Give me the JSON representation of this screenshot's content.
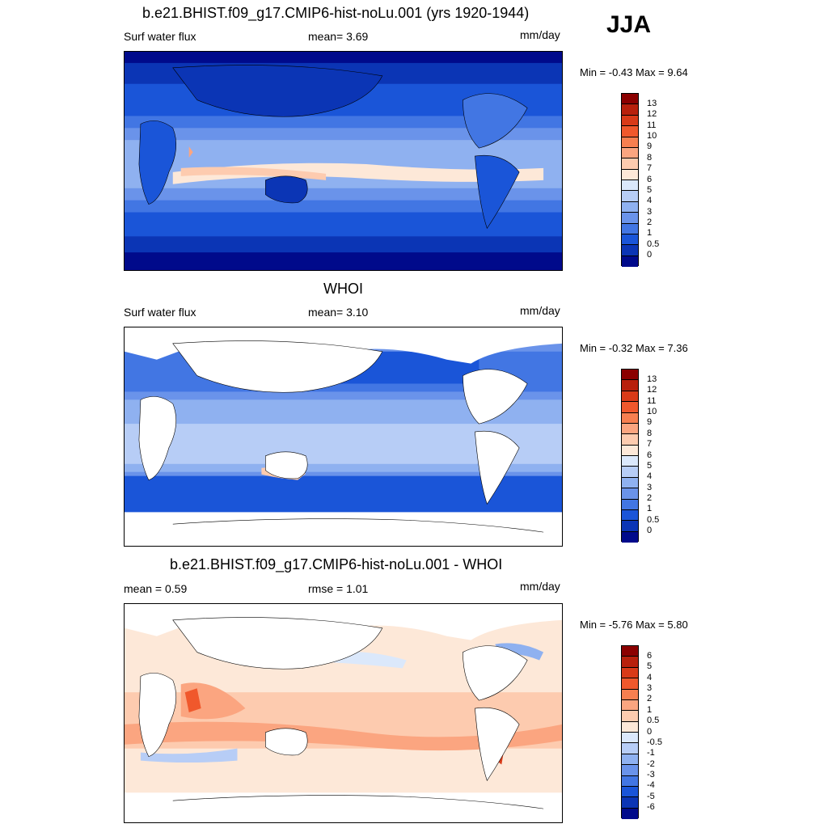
{
  "season": "JJA",
  "panels": [
    {
      "title": "b.e21.BHIST.f09_g17.CMIP6-hist-noLu.001 (yrs 1920-1944)",
      "left_label": "Surf water flux",
      "center_label": "mean=   3.69",
      "units": "mm/day",
      "minmax": "Min =  -0.43 Max =    9.64",
      "colorbar_labels": [
        "13",
        "12",
        "11",
        "10",
        "9",
        "8",
        "7",
        "6",
        "5",
        "4",
        "3",
        "2",
        "1",
        "0.5",
        "0"
      ],
      "colorbar_colors": [
        "#8b0000",
        "#b8200c",
        "#d93a18",
        "#f0582c",
        "#f77f50",
        "#fba580",
        "#fdcbaf",
        "#fde8d8",
        "#dbe8fb",
        "#b7cdf6",
        "#8fb1f0",
        "#6a93ea",
        "#4276e3",
        "#1a55d8",
        "#0b35b5",
        "#000a8b"
      ]
    },
    {
      "title": "WHOI",
      "left_label": "Surf water flux",
      "center_label": "mean=   3.10",
      "units": "mm/day",
      "minmax": "Min =  -0.32 Max =    7.36",
      "colorbar_labels": [
        "13",
        "12",
        "11",
        "10",
        "9",
        "8",
        "7",
        "6",
        "5",
        "4",
        "3",
        "2",
        "1",
        "0.5",
        "0"
      ],
      "colorbar_colors": [
        "#8b0000",
        "#b8200c",
        "#d93a18",
        "#f0582c",
        "#f77f50",
        "#fba580",
        "#fdcbaf",
        "#fde8d8",
        "#dbe8fb",
        "#b7cdf6",
        "#8fb1f0",
        "#6a93ea",
        "#4276e3",
        "#1a55d8",
        "#0b35b5",
        "#000a8b"
      ]
    },
    {
      "title": "b.e21.BHIST.f09_g17.CMIP6-hist-noLu.001 - WHOI",
      "left_label": "mean =    0.59",
      "center_label": "rmse =    1.01",
      "units": "mm/day",
      "minmax": "Min =  -5.76 Max =    5.80",
      "colorbar_labels": [
        "6",
        "5",
        "4",
        "3",
        "2",
        "1",
        "0.5",
        "0",
        "-0.5",
        "-1",
        "-2",
        "-3",
        "-4",
        "-5",
        "-6"
      ],
      "colorbar_colors": [
        "#8b0000",
        "#b8200c",
        "#d93a18",
        "#f0582c",
        "#f77f50",
        "#fba580",
        "#fdcbaf",
        "#fde8d8",
        "#dbe8fb",
        "#b7cdf6",
        "#8fb1f0",
        "#6a93ea",
        "#4276e3",
        "#1a55d8",
        "#0b35b5",
        "#000a8b"
      ]
    }
  ]
}
